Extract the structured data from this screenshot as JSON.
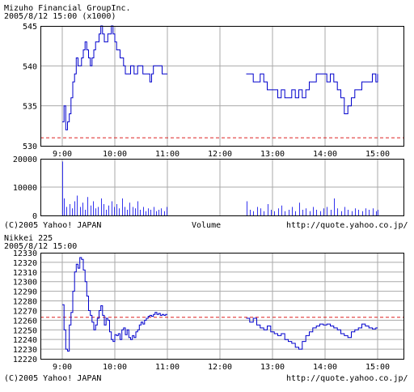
{
  "colors": {
    "line": "#0000cc",
    "volume": "#3333ee",
    "grid": "#aaaaaa",
    "frame": "#000000",
    "ref_line": "#dd2222",
    "background": "#ffffff"
  },
  "chart_data": [
    {
      "id": "mizuho-price",
      "type": "line",
      "title": "Mizuho  Financial  GroupInc.",
      "subtitle": "2005/8/12 15:00  (x1000)",
      "x_ticks": [
        "9:00",
        "10:00",
        "11:00",
        "12:00",
        "13:00",
        "14:00",
        "15:00"
      ],
      "y_ticks": [
        "530",
        "535",
        "540",
        "545"
      ],
      "ylim": [
        530,
        545
      ],
      "grid": true,
      "reference_line": 531,
      "series": [
        {
          "x": [
            "9:00",
            "9:02",
            "9:04",
            "9:06",
            "9:08",
            "9:10",
            "9:12",
            "9:14",
            "9:16",
            "9:18",
            "9:20",
            "9:22",
            "9:24",
            "9:26",
            "9:28",
            "9:30",
            "9:32",
            "9:34",
            "9:36",
            "9:38",
            "9:40",
            "9:42",
            "9:44",
            "9:46",
            "9:48",
            "9:50",
            "9:52",
            "9:54",
            "9:56",
            "9:58",
            "10:00",
            "10:02",
            "10:04",
            "10:06",
            "10:08",
            "10:10",
            "10:12",
            "10:14",
            "10:16",
            "10:18",
            "10:20",
            "10:22",
            "10:24",
            "10:26",
            "10:28",
            "10:30",
            "10:32",
            "10:34",
            "10:36",
            "10:38",
            "10:40",
            "10:42",
            "10:44",
            "10:46",
            "10:48",
            "10:50",
            "10:52",
            "10:54",
            "10:56",
            "10:58",
            "11:00"
          ],
          "values": [
            533,
            535,
            532,
            533,
            534,
            536,
            538,
            539,
            541,
            540,
            540,
            541,
            542,
            543,
            542,
            541,
            540,
            541,
            542,
            543,
            543,
            544,
            545,
            544,
            543,
            543,
            544,
            544,
            545,
            544,
            543,
            542,
            542,
            541,
            541,
            540,
            539,
            539,
            539,
            540,
            540,
            539,
            539,
            540,
            540,
            540,
            539,
            539,
            539,
            539,
            538,
            539,
            540,
            540,
            540,
            540,
            540,
            539,
            539,
            539,
            539
          ]
        },
        {
          "x": [
            "12:30",
            "12:34",
            "12:38",
            "12:42",
            "12:46",
            "12:50",
            "12:54",
            "12:58",
            "13:02",
            "13:06",
            "13:10",
            "13:14",
            "13:18",
            "13:22",
            "13:26",
            "13:30",
            "13:34",
            "13:38",
            "13:42",
            "13:46",
            "13:50",
            "13:54",
            "13:58",
            "14:02",
            "14:06",
            "14:10",
            "14:14",
            "14:18",
            "14:22",
            "14:26",
            "14:30",
            "14:34",
            "14:38",
            "14:42",
            "14:46",
            "14:50",
            "14:54",
            "14:58",
            "15:00"
          ],
          "values": [
            539,
            539,
            538,
            538,
            539,
            538,
            537,
            537,
            537,
            536,
            537,
            536,
            536,
            537,
            536,
            537,
            536,
            537,
            538,
            538,
            539,
            539,
            539,
            538,
            539,
            538,
            537,
            536,
            534,
            535,
            536,
            537,
            537,
            538,
            538,
            538,
            539,
            538,
            539
          ]
        }
      ]
    },
    {
      "id": "mizuho-volume",
      "type": "bar",
      "title": "Volume",
      "x_ticks": [
        "9:00",
        "10:00",
        "11:00",
        "12:00",
        "13:00",
        "14:00",
        "15:00"
      ],
      "y_ticks": [
        "0",
        "10000",
        "20000"
      ],
      "ylim": [
        0,
        20000
      ],
      "grid": true,
      "series": [
        {
          "x": [
            "9:00",
            "9:02",
            "9:05",
            "9:08",
            "9:11",
            "9:14",
            "9:17",
            "9:20",
            "9:23",
            "9:26",
            "9:29",
            "9:32",
            "9:35",
            "9:38",
            "9:41",
            "9:44",
            "9:47",
            "9:50",
            "9:53",
            "9:56",
            "9:59",
            "10:02",
            "10:05",
            "10:08",
            "10:11",
            "10:14",
            "10:17",
            "10:20",
            "10:23",
            "10:26",
            "10:29",
            "10:32",
            "10:35",
            "10:38",
            "10:41",
            "10:44",
            "10:47",
            "10:50",
            "10:53",
            "10:56",
            "10:59",
            "12:30",
            "12:34",
            "12:38",
            "12:42",
            "12:46",
            "12:50",
            "12:54",
            "12:58",
            "13:02",
            "13:06",
            "13:10",
            "13:14",
            "13:18",
            "13:22",
            "13:26",
            "13:30",
            "13:34",
            "13:38",
            "13:42",
            "13:46",
            "13:50",
            "13:54",
            "13:58",
            "14:02",
            "14:06",
            "14:10",
            "14:14",
            "14:18",
            "14:22",
            "14:26",
            "14:30",
            "14:34",
            "14:38",
            "14:42",
            "14:46",
            "14:50",
            "14:54",
            "14:58",
            "15:00"
          ],
          "values": [
            19000,
            6000,
            3000,
            4000,
            2500,
            5000,
            7000,
            3000,
            4500,
            2000,
            6500,
            3500,
            5000,
            2500,
            3000,
            6000,
            4000,
            2000,
            3500,
            5000,
            3000,
            4000,
            2500,
            6000,
            3000,
            2000,
            4500,
            3000,
            2500,
            5000,
            2000,
            3000,
            1500,
            2500,
            2000,
            3000,
            1500,
            2000,
            2500,
            1500,
            3000,
            5000,
            2000,
            1500,
            3000,
            2500,
            1500,
            4000,
            2000,
            1500,
            2500,
            3500,
            1500,
            2000,
            3000,
            1500,
            4500,
            2000,
            2500,
            1500,
            3000,
            2000,
            1500,
            2500,
            3000,
            2000,
            6000,
            2500,
            1500,
            3000,
            2000,
            1500,
            2500,
            2000,
            1500,
            2500,
            2000,
            2500,
            1500,
            2000
          ]
        }
      ],
      "footer_left": "(C)2005 Yahoo! JAPAN",
      "footer_right": "http://quote.yahoo.co.jp/"
    },
    {
      "id": "nikkei-225",
      "type": "line",
      "title": "Nikkei 225",
      "subtitle": "2005/8/12 15:00",
      "x_ticks": [
        "9:00",
        "10:00",
        "11:00",
        "12:00",
        "13:00",
        "14:00",
        "15:00"
      ],
      "y_ticks": [
        "12220",
        "12230",
        "12240",
        "12250",
        "12260",
        "12270",
        "12280",
        "12290",
        "12300",
        "12310",
        "12320",
        "12330"
      ],
      "ylim": [
        12220,
        12330
      ],
      "grid": true,
      "reference_line": 12263,
      "series": [
        {
          "x": [
            "9:00",
            "9:02",
            "9:04",
            "9:06",
            "9:08",
            "9:10",
            "9:12",
            "9:14",
            "9:16",
            "9:18",
            "9:20",
            "9:22",
            "9:24",
            "9:26",
            "9:28",
            "9:30",
            "9:32",
            "9:34",
            "9:36",
            "9:38",
            "9:40",
            "9:42",
            "9:44",
            "9:46",
            "9:48",
            "9:50",
            "9:52",
            "9:54",
            "9:56",
            "9:58",
            "10:00",
            "10:02",
            "10:04",
            "10:06",
            "10:08",
            "10:10",
            "10:12",
            "10:14",
            "10:16",
            "10:18",
            "10:20",
            "10:22",
            "10:24",
            "10:26",
            "10:28",
            "10:30",
            "10:32",
            "10:34",
            "10:36",
            "10:38",
            "10:40",
            "10:42",
            "10:44",
            "10:46",
            "10:48",
            "10:50",
            "10:52",
            "10:54",
            "10:56",
            "10:58",
            "11:00"
          ],
          "values": [
            12276,
            12250,
            12230,
            12228,
            12255,
            12268,
            12290,
            12310,
            12318,
            12314,
            12325,
            12323,
            12312,
            12300,
            12285,
            12270,
            12265,
            12258,
            12250,
            12255,
            12262,
            12270,
            12275,
            12265,
            12255,
            12262,
            12260,
            12248,
            12240,
            12238,
            12245,
            12244,
            12246,
            12240,
            12250,
            12252,
            12245,
            12250,
            12242,
            12240,
            12244,
            12242,
            12248,
            12250,
            12255,
            12258,
            12256,
            12260,
            12262,
            12264,
            12265,
            12264,
            12266,
            12268,
            12266,
            12267,
            12265,
            12266,
            12265,
            12266,
            12266
          ]
        },
        {
          "x": [
            "12:30",
            "12:34",
            "12:38",
            "12:42",
            "12:46",
            "12:50",
            "12:54",
            "12:58",
            "13:02",
            "13:06",
            "13:10",
            "13:14",
            "13:18",
            "13:22",
            "13:26",
            "13:30",
            "13:34",
            "13:38",
            "13:42",
            "13:46",
            "13:50",
            "13:54",
            "13:58",
            "14:02",
            "14:06",
            "14:10",
            "14:14",
            "14:18",
            "14:22",
            "14:26",
            "14:30",
            "14:34",
            "14:38",
            "14:42",
            "14:46",
            "14:50",
            "14:54",
            "14:58",
            "15:00"
          ],
          "values": [
            12262,
            12258,
            12262,
            12255,
            12252,
            12250,
            12254,
            12248,
            12246,
            12244,
            12246,
            12240,
            12238,
            12236,
            12232,
            12230,
            12238,
            12244,
            12248,
            12252,
            12254,
            12256,
            12255,
            12256,
            12254,
            12252,
            12250,
            12246,
            12244,
            12242,
            12248,
            12250,
            12252,
            12256,
            12254,
            12252,
            12251,
            12252,
            12252
          ]
        }
      ],
      "footer_left": "(C)2005 Yahoo! JAPAN",
      "footer_right": "http://quote.yahoo.co.jp/"
    }
  ]
}
